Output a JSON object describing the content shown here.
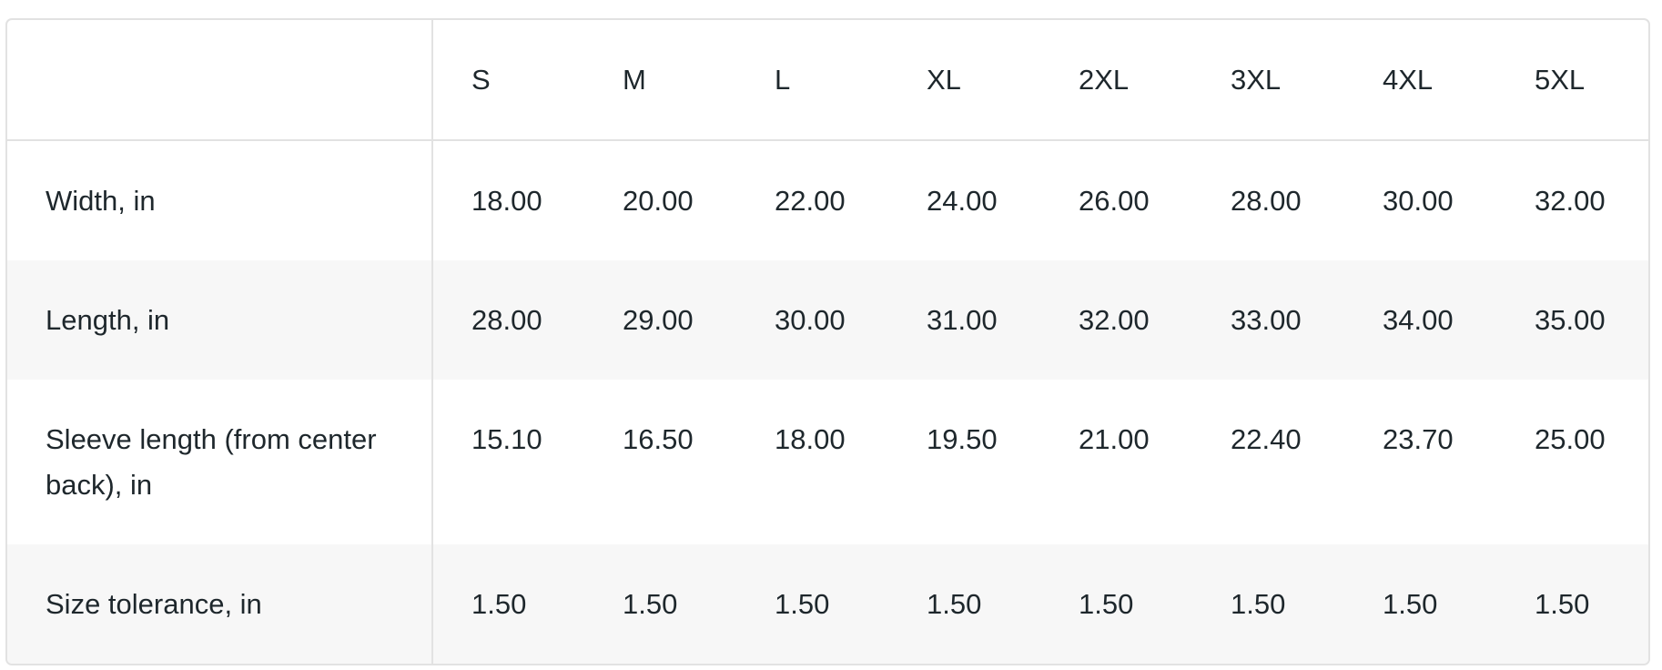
{
  "table": {
    "corner": "",
    "sizes": [
      "S",
      "M",
      "L",
      "XL",
      "2XL",
      "3XL",
      "4XL",
      "5XL"
    ],
    "rows": [
      {
        "label": "Width, in",
        "values": [
          "18.00",
          "20.00",
          "22.00",
          "24.00",
          "26.00",
          "28.00",
          "30.00",
          "32.00"
        ]
      },
      {
        "label": "Length, in",
        "values": [
          "28.00",
          "29.00",
          "30.00",
          "31.00",
          "32.00",
          "33.00",
          "34.00",
          "35.00"
        ]
      },
      {
        "label": "Sleeve length (from center back), in",
        "values": [
          "15.10",
          "16.50",
          "18.00",
          "19.50",
          "21.00",
          "22.40",
          "23.70",
          "25.00"
        ]
      },
      {
        "label": "Size tolerance, in",
        "values": [
          "1.50",
          "1.50",
          "1.50",
          "1.50",
          "1.50",
          "1.50",
          "1.50",
          "1.50"
        ]
      }
    ]
  }
}
